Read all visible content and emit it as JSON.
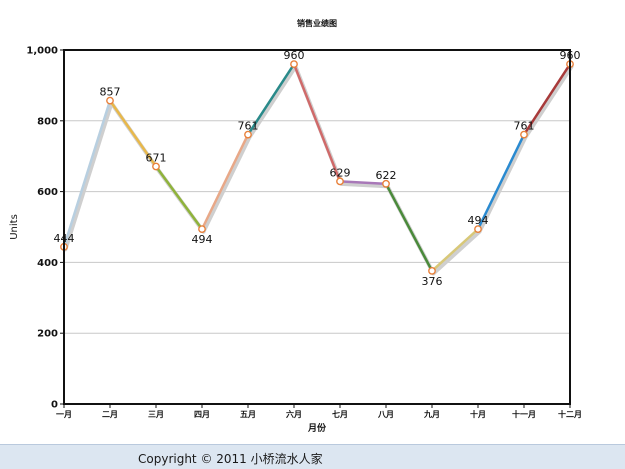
{
  "chart_data": {
    "type": "line",
    "title": "销售业绩图",
    "xlabel": "月份",
    "ylabel": "Units",
    "categories": [
      "一月",
      "二月",
      "三月",
      "四月",
      "五月",
      "六月",
      "七月",
      "八月",
      "九月",
      "十月",
      "十一月",
      "十二月"
    ],
    "values": [
      444,
      857,
      671,
      494,
      761,
      960,
      629,
      622,
      376,
      494,
      761,
      960
    ],
    "ylim": [
      0,
      1000
    ],
    "yticks": [
      0,
      200,
      400,
      600,
      800,
      1000
    ],
    "ytick_labels": [
      "0",
      "200",
      "400",
      "600",
      "800",
      "1,000"
    ],
    "grid": true,
    "legend": "none",
    "segment_colors": [
      "#b8cfe0",
      "#e8b84a",
      "#8fb33a",
      "#e8a888",
      "#2a8a8a",
      "#d06a6a",
      "#a878b8",
      "#4a8a3a",
      "#d8c878",
      "#2a8ad0",
      "#a83a3a"
    ],
    "marker_color": "#e8803a"
  },
  "footer": {
    "copyright": "Copyright © 2011 小桥流水人家"
  }
}
